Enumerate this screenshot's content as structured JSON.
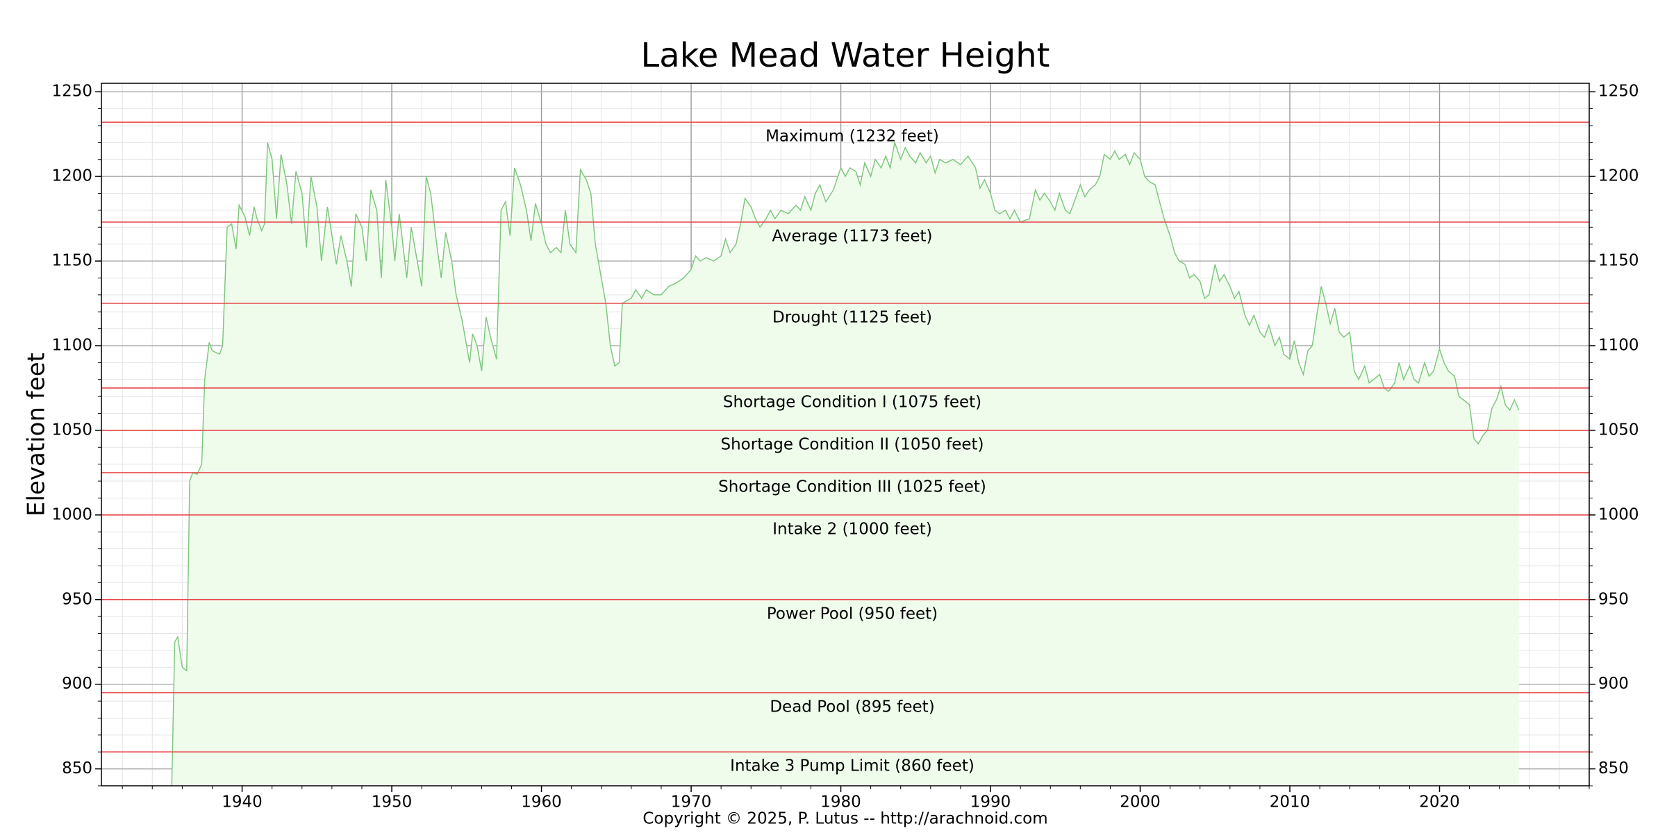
{
  "chart_data": {
    "type": "area",
    "title": "Lake Mead Water Height",
    "ylabel": "Elevation feet",
    "footer": "Copyright © 2025, P. Lutus -- http://arachnoid.com",
    "xlim": [
      1930.6,
      2030
    ],
    "ylim": [
      840,
      1255
    ],
    "xticks": [
      1940,
      1950,
      1960,
      1970,
      1980,
      1990,
      2000,
      2010,
      2020
    ],
    "yticks": [
      850,
      900,
      950,
      1000,
      1050,
      1100,
      1150,
      1200,
      1250
    ],
    "grid": true,
    "minor_grid": true,
    "right_axis": true,
    "series": [
      {
        "color": "#7fc77f",
        "fill": "#effcec",
        "x": [
          1935.3,
          1935.5,
          1935.7,
          1936.0,
          1936.3,
          1936.5,
          1936.7,
          1937.0,
          1937.3,
          1937.5,
          1937.8,
          1938.0,
          1938.5,
          1938.7,
          1939.0,
          1939.3,
          1939.6,
          1939.8,
          1940.2,
          1940.5,
          1940.8,
          1941.0,
          1941.3,
          1941.5,
          1941.7,
          1942.0,
          1942.3,
          1942.6,
          1943.0,
          1943.3,
          1943.6,
          1944.0,
          1944.3,
          1944.6,
          1945.0,
          1945.3,
          1945.7,
          1946.0,
          1946.3,
          1946.6,
          1947.0,
          1947.3,
          1947.6,
          1948.0,
          1948.3,
          1948.6,
          1949.0,
          1949.3,
          1949.6,
          1950.0,
          1950.2,
          1950.5,
          1951.0,
          1951.3,
          1951.7,
          1952.0,
          1952.3,
          1952.6,
          1953.0,
          1953.3,
          1953.6,
          1954.0,
          1954.3,
          1954.7,
          1955.0,
          1955.2,
          1955.4,
          1955.7,
          1956.0,
          1956.3,
          1956.6,
          1957.0,
          1957.3,
          1957.6,
          1957.9,
          1958.2,
          1958.6,
          1959.0,
          1959.3,
          1959.6,
          1960.0,
          1960.3,
          1960.6,
          1961.0,
          1961.3,
          1961.6,
          1961.9,
          1962.3,
          1962.6,
          1963.0,
          1963.3,
          1963.6,
          1964.0,
          1964.3,
          1964.6,
          1964.9,
          1965.2,
          1965.4,
          1966.0,
          1966.3,
          1966.7,
          1967.0,
          1967.5,
          1968.0,
          1968.5,
          1969.0,
          1969.5,
          1970.0,
          1970.3,
          1970.6,
          1971.0,
          1971.5,
          1972.0,
          1972.3,
          1972.6,
          1973.0,
          1973.3,
          1973.6,
          1974.0,
          1974.3,
          1974.6,
          1975.0,
          1975.3,
          1975.6,
          1976.0,
          1976.5,
          1977.0,
          1977.3,
          1977.6,
          1978.0,
          1978.3,
          1978.6,
          1979.0,
          1979.5,
          1980.0,
          1980.3,
          1980.6,
          1981.0,
          1981.3,
          1981.6,
          1982.0,
          1982.3,
          1982.7,
          1983.0,
          1983.3,
          1983.6,
          1984.0,
          1984.3,
          1984.6,
          1985.0,
          1985.3,
          1985.7,
          1986.0,
          1986.3,
          1986.6,
          1987.0,
          1987.5,
          1988.0,
          1988.5,
          1989.0,
          1989.3,
          1989.6,
          1990.0,
          1990.3,
          1990.6,
          1991.0,
          1991.3,
          1991.6,
          1992.0,
          1992.3,
          1992.6,
          1993.0,
          1993.3,
          1993.6,
          1994.0,
          1994.3,
          1994.6,
          1995.0,
          1995.3,
          1995.6,
          1996.0,
          1996.3,
          1996.6,
          1997.0,
          1997.3,
          1997.6,
          1998.0,
          1998.3,
          1998.6,
          1999.0,
          1999.3,
          1999.6,
          2000.0,
          2000.3,
          2000.6,
          2001.0,
          2001.3,
          2001.6,
          2002.0,
          2002.3,
          2002.6,
          2003.0,
          2003.3,
          2003.6,
          2004.0,
          2004.3,
          2004.6,
          2005.0,
          2005.3,
          2005.6,
          2006.0,
          2006.3,
          2006.6,
          2007.0,
          2007.3,
          2007.6,
          2008.0,
          2008.3,
          2008.6,
          2009.0,
          2009.3,
          2009.6,
          2010.0,
          2010.3,
          2010.6,
          2010.9,
          2011.2,
          2011.5,
          2011.8,
          2012.1,
          2012.4,
          2012.7,
          2013.0,
          2013.3,
          2013.6,
          2014.0,
          2014.3,
          2014.6,
          2015.0,
          2015.3,
          2015.6,
          2016.0,
          2016.3,
          2016.6,
          2017.0,
          2017.3,
          2017.6,
          2018.0,
          2018.3,
          2018.6,
          2019.0,
          2019.3,
          2019.6,
          2020.0,
          2020.3,
          2020.6,
          2021.0,
          2021.3,
          2021.6,
          2022.0,
          2022.3,
          2022.6,
          2022.9,
          2023.2,
          2023.5,
          2023.8,
          2024.1,
          2024.4,
          2024.7,
          2025.0,
          2025.3
        ],
        "values": [
          840,
          925,
          928,
          910,
          908,
          1020,
          1025,
          1024,
          1030,
          1080,
          1102,
          1097,
          1095,
          1100,
          1170,
          1172,
          1157,
          1183,
          1176,
          1165,
          1182,
          1175,
          1168,
          1172,
          1220,
          1210,
          1175,
          1213,
          1195,
          1172,
          1203,
          1190,
          1158,
          1200,
          1182,
          1150,
          1182,
          1165,
          1148,
          1165,
          1150,
          1135,
          1178,
          1170,
          1150,
          1192,
          1180,
          1140,
          1198,
          1170,
          1150,
          1178,
          1140,
          1170,
          1150,
          1135,
          1200,
          1190,
          1160,
          1140,
          1167,
          1150,
          1130,
          1115,
          1100,
          1090,
          1107,
          1100,
          1085,
          1117,
          1105,
          1092,
          1180,
          1185,
          1165,
          1205,
          1195,
          1180,
          1162,
          1184,
          1172,
          1160,
          1155,
          1158,
          1155,
          1180,
          1160,
          1155,
          1204,
          1198,
          1190,
          1160,
          1140,
          1125,
          1100,
          1088,
          1090,
          1125,
          1128,
          1133,
          1128,
          1133,
          1130,
          1130,
          1135,
          1137,
          1140,
          1145,
          1153,
          1150,
          1152,
          1150,
          1153,
          1163,
          1155,
          1160,
          1172,
          1187,
          1182,
          1175,
          1170,
          1175,
          1180,
          1175,
          1180,
          1178,
          1183,
          1180,
          1188,
          1180,
          1190,
          1195,
          1185,
          1192,
          1205,
          1200,
          1205,
          1203,
          1195,
          1208,
          1200,
          1210,
          1205,
          1212,
          1205,
          1220,
          1210,
          1217,
          1212,
          1208,
          1214,
          1208,
          1212,
          1202,
          1210,
          1208,
          1210,
          1207,
          1212,
          1205,
          1193,
          1198,
          1190,
          1180,
          1178,
          1180,
          1175,
          1180,
          1173,
          1174,
          1175,
          1192,
          1186,
          1190,
          1185,
          1180,
          1190,
          1180,
          1178,
          1185,
          1195,
          1188,
          1192,
          1195,
          1200,
          1213,
          1210,
          1215,
          1210,
          1213,
          1207,
          1214,
          1210,
          1200,
          1197,
          1195,
          1185,
          1175,
          1165,
          1155,
          1150,
          1148,
          1140,
          1142,
          1138,
          1128,
          1130,
          1148,
          1138,
          1142,
          1135,
          1128,
          1132,
          1118,
          1112,
          1118,
          1108,
          1105,
          1112,
          1100,
          1105,
          1095,
          1092,
          1103,
          1090,
          1083,
          1097,
          1100,
          1118,
          1135,
          1125,
          1113,
          1122,
          1108,
          1105,
          1108,
          1085,
          1080,
          1088,
          1078,
          1080,
          1083,
          1075,
          1073,
          1078,
          1090,
          1080,
          1088,
          1080,
          1078,
          1090,
          1082,
          1085,
          1098,
          1090,
          1085,
          1082,
          1070,
          1068,
          1065,
          1045,
          1042,
          1047,
          1050,
          1063,
          1068,
          1076,
          1065,
          1062,
          1068,
          1062
        ]
      }
    ],
    "reference_lines": {
      "color": "#e8484b",
      "values": [
        1232,
        1173,
        1125,
        1075,
        1050,
        1025,
        1000,
        950,
        895,
        860
      ],
      "labels": [
        "Maximum (1232 feet)",
        "Average (1173 feet)",
        "Drought (1125 feet)",
        "Shortage Condition I (1075 feet)",
        "Shortage Condition II (1050 feet)",
        "Shortage Condition III (1025 feet)",
        "Intake 2 (1000 feet)",
        "Power Pool (950 feet)",
        "Dead Pool (895 feet)",
        "Intake 3 Pump Limit (860 feet)"
      ]
    }
  }
}
